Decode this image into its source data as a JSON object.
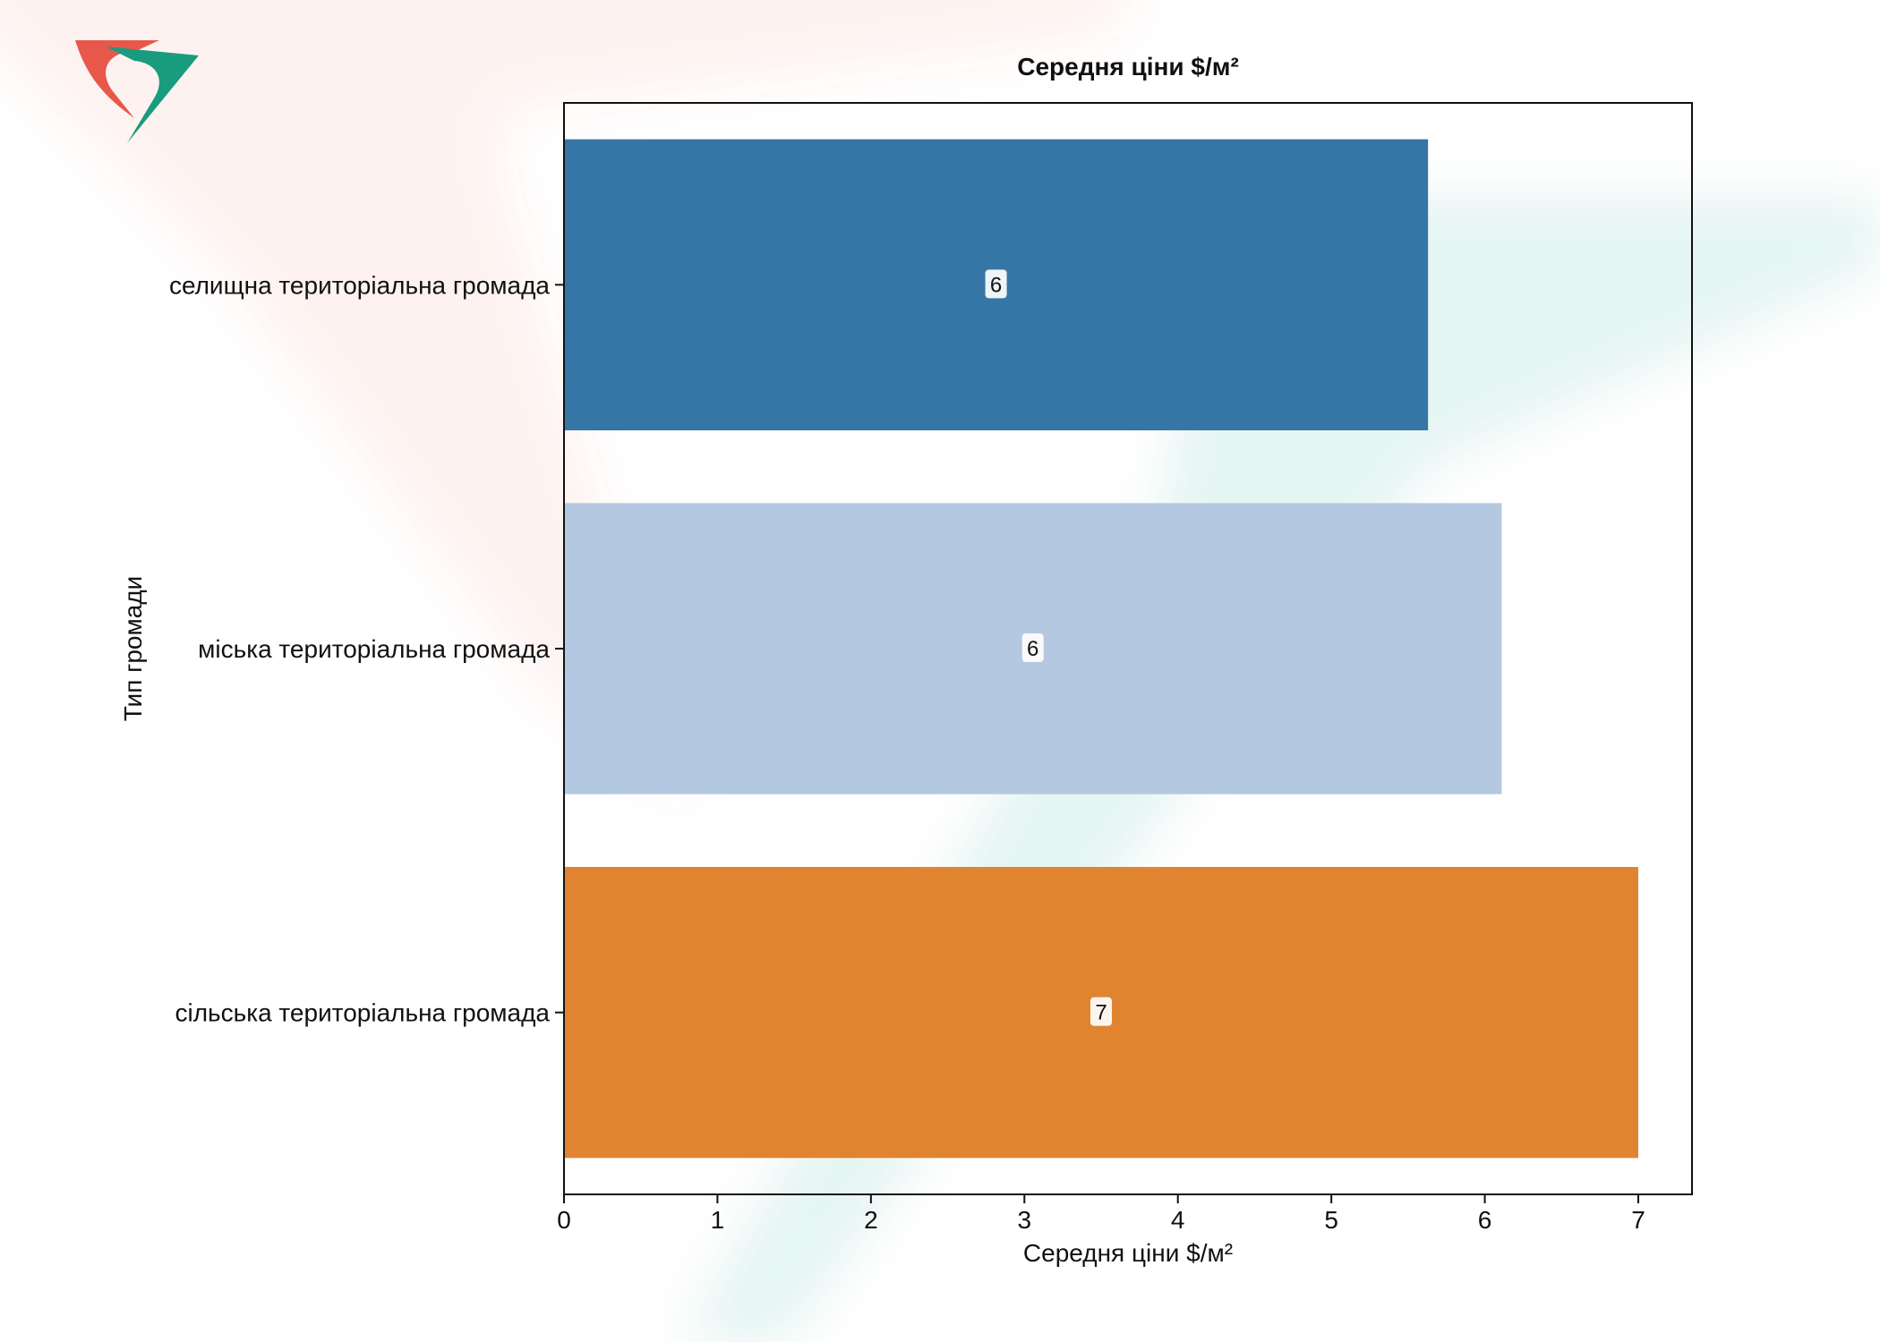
{
  "chart_data": {
    "type": "bar",
    "orientation": "horizontal",
    "title": "Середня ціни $/м²",
    "xlabel": "Середня ціни $/м²",
    "ylabel": "Тип громади",
    "categories": [
      "селищна територіальна громада",
      "міська територіальна громада",
      "сільська територіальна громада"
    ],
    "values": [
      5.63,
      6.11,
      7.0
    ],
    "data_labels": [
      "6",
      "6",
      "7"
    ],
    "colors": [
      "#2f72a3",
      "#b3c6e1",
      "#e0802b"
    ],
    "xlim": [
      0,
      7.35
    ],
    "xticks": [
      0,
      1,
      2,
      3,
      4,
      5,
      6,
      7
    ],
    "xtick_labels": [
      "0",
      "1",
      "2",
      "3",
      "4",
      "5",
      "6",
      "7"
    ],
    "grid": false,
    "legend": "none"
  },
  "logo": {
    "colors": [
      "#e8584a",
      "#199c7d"
    ]
  }
}
